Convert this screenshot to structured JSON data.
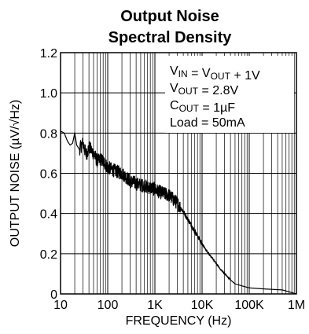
{
  "chart_data": {
    "type": "line",
    "title": "Output Noise",
    "subtitle": "Spectral Density",
    "xlabel": "FREQUENCY (Hz)",
    "ylabel": "OUTPUT NOISE (µV/√Hz)",
    "xscale": "log",
    "xlim": [
      10,
      1000000
    ],
    "ylim": [
      0,
      1.2
    ],
    "grid": true,
    "x_ticks": [
      {
        "value": 10,
        "label": "10"
      },
      {
        "value": 100,
        "label": "100"
      },
      {
        "value": 1000,
        "label": "1K"
      },
      {
        "value": 10000,
        "label": "10K"
      },
      {
        "value": 100000,
        "label": "100K"
      },
      {
        "value": 1000000,
        "label": "1M"
      }
    ],
    "y_ticks": [
      {
        "value": 0,
        "label": "0"
      },
      {
        "value": 0.2,
        "label": "0.2"
      },
      {
        "value": 0.4,
        "label": "0.4"
      },
      {
        "value": 0.6,
        "label": "0.6"
      },
      {
        "value": 0.8,
        "label": "0.8"
      },
      {
        "value": 1.0,
        "label": "1.0"
      },
      {
        "value": 1.2,
        "label": "1.2"
      }
    ],
    "legend_position": "top-right",
    "annotations": [
      {
        "parts": [
          [
            "V",
            ""
          ],
          [
            "IN",
            "sub"
          ],
          [
            " = V",
            ""
          ],
          [
            "OUT",
            "sub"
          ],
          [
            " + 1V",
            ""
          ]
        ]
      },
      {
        "parts": [
          [
            "V",
            ""
          ],
          [
            "OUT",
            "sub"
          ],
          [
            " = 2.8V",
            ""
          ]
        ]
      },
      {
        "parts": [
          [
            "C",
            ""
          ],
          [
            "OUT",
            "sub"
          ],
          [
            " = 1µF",
            ""
          ]
        ]
      },
      {
        "parts": [
          [
            "Load = 50mA",
            ""
          ]
        ]
      }
    ],
    "series": [
      {
        "color": "#000000",
        "x": [
          10,
          12,
          14,
          16,
          18,
          20,
          22,
          25,
          30,
          35,
          40,
          50,
          60,
          70,
          80,
          100,
          120,
          150,
          200,
          250,
          300,
          400,
          500,
          600,
          700,
          800,
          1000,
          1200,
          1500,
          2000,
          2500,
          3000,
          3500,
          4000,
          5000,
          6000,
          7000,
          8000,
          10000,
          12000,
          15000,
          20000,
          25000,
          30000,
          40000,
          50000,
          70000,
          100000,
          200000,
          500000,
          1000000
        ],
        "y": [
          0.81,
          0.8,
          0.76,
          0.74,
          0.75,
          0.8,
          0.74,
          0.72,
          0.75,
          0.69,
          0.73,
          0.7,
          0.66,
          0.67,
          0.66,
          0.63,
          0.62,
          0.61,
          0.6,
          0.58,
          0.56,
          0.55,
          0.54,
          0.54,
          0.53,
          0.53,
          0.52,
          0.51,
          0.5,
          0.49,
          0.47,
          0.45,
          0.43,
          0.41,
          0.37,
          0.34,
          0.31,
          0.29,
          0.25,
          0.22,
          0.19,
          0.15,
          0.12,
          0.1,
          0.07,
          0.05,
          0.04,
          0.03,
          0.025,
          0.02,
          0.0
        ]
      }
    ]
  }
}
